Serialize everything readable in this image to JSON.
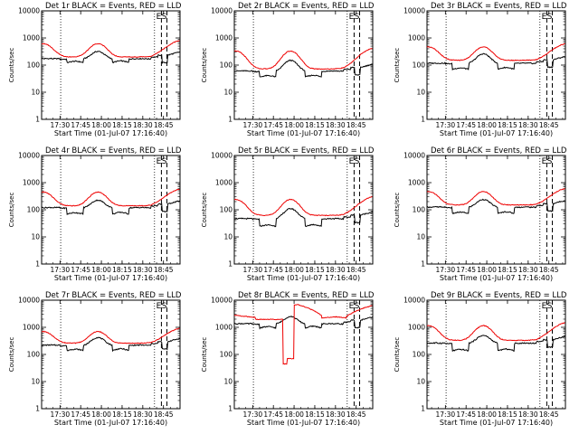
{
  "chart_data": {
    "type": "line",
    "layout": "3x3 grid",
    "y_scale": "log",
    "ylim": [
      1,
      10000
    ],
    "y_tick_labels": [
      "1",
      "10",
      "100",
      "1000",
      "10000"
    ],
    "x_tick_labels": [
      "17:30",
      "17:45",
      "18:00",
      "18:15",
      "18:30",
      "18:45"
    ],
    "x_tick_minutes": [
      30,
      45,
      60,
      75,
      90,
      105
    ],
    "xlim_minutes": [
      16.67,
      117
    ],
    "x_origin": "17:00 01-Jul-07",
    "xlabel": "Start Time (01-Jul-07 17:16:40)",
    "ylabel": "Counts/sec",
    "dotted_lines_minutes": [
      30.5,
      98.5
    ],
    "dashed_lines_minutes": [
      103.5,
      107.5
    ],
    "markers": [
      "E",
      "S"
    ],
    "colors": {
      "events": "#000000",
      "lld": "#ee0000"
    },
    "panels": [
      {
        "title": "Det 1r BLACK = Events, RED = LLD",
        "red_shape": "normal",
        "red_base": 200,
        "red_peak": 620,
        "black_base": 165,
        "black_peak": 320,
        "black_drop": 0.62
      },
      {
        "title": "Det 2r BLACK = Events, RED = LLD",
        "red_shape": "normal",
        "red_base": 72,
        "red_peak": 330,
        "black_base": 58,
        "black_peak": 150,
        "black_drop": 0.52
      },
      {
        "title": "Det 3r BLACK = Events, RED = LLD",
        "red_shape": "normal",
        "red_base": 150,
        "red_peak": 470,
        "black_base": 112,
        "black_peak": 260,
        "black_drop": 0.52
      },
      {
        "title": "Det 4r BLACK = Events, RED = LLD",
        "red_shape": "normal",
        "red_base": 140,
        "red_peak": 450,
        "black_base": 115,
        "black_peak": 225,
        "black_drop": 0.5
      },
      {
        "title": "Det 5r BLACK = Events, RED = LLD",
        "red_shape": "normal",
        "red_base": 62,
        "red_peak": 240,
        "black_base": 45,
        "black_peak": 110,
        "black_drop": 0.45
      },
      {
        "title": "Det 6r BLACK = Events, RED = LLD",
        "red_shape": "normal",
        "red_base": 150,
        "red_peak": 470,
        "black_base": 120,
        "black_peak": 240,
        "black_drop": 0.5
      },
      {
        "title": "Det 7r BLACK = Events, RED = LLD",
        "red_shape": "normal",
        "red_base": 260,
        "red_peak": 700,
        "black_base": 210,
        "black_peak": 420,
        "black_drop": 0.55
      },
      {
        "title": "Det 8r BLACK = Events, RED = LLD",
        "red_shape": "det8",
        "red_base": 2300,
        "red_peak": 6800,
        "black_base": 1300,
        "black_peak": 2500,
        "black_drop": 0.6
      },
      {
        "title": "Det 9r BLACK = Events, RED = LLD",
        "red_shape": "normal",
        "red_base": 330,
        "red_peak": 1150,
        "black_base": 250,
        "black_peak": 500,
        "black_drop": 0.45
      }
    ]
  }
}
